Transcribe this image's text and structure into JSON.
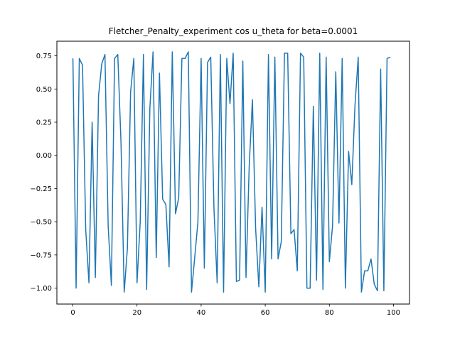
{
  "chart_data": {
    "type": "line",
    "title": "Fletcher_Penalty_experiment cos u_theta for beta=0.0001",
    "xlabel": "",
    "ylabel": "",
    "xlim": [
      -5,
      105
    ],
    "ylim": [
      -1.12,
      0.86
    ],
    "xticks": [
      0,
      20,
      40,
      60,
      80,
      100
    ],
    "xtick_labels": [
      "0",
      "20",
      "40",
      "60",
      "80",
      "100"
    ],
    "yticks": [
      -1.0,
      -0.75,
      -0.5,
      -0.25,
      0.0,
      0.25,
      0.5,
      0.75
    ],
    "ytick_labels": [
      "−1.00",
      "−0.75",
      "−0.50",
      "−0.25",
      "0.00",
      "0.25",
      "0.50",
      "0.75"
    ],
    "grid": false,
    "series": [
      {
        "color": "#1f77b4",
        "x": [
          0,
          1,
          2,
          3,
          4,
          5,
          6,
          7,
          8,
          9,
          10,
          11,
          12,
          13,
          14,
          15,
          16,
          17,
          18,
          19,
          20,
          21,
          22,
          23,
          24,
          25,
          26,
          27,
          28,
          29,
          30,
          31,
          32,
          33,
          34,
          35,
          36,
          37,
          38,
          39,
          40,
          41,
          42,
          43,
          44,
          45,
          46,
          47,
          48,
          49,
          50,
          51,
          52,
          53,
          54,
          55,
          56,
          57,
          58,
          59,
          60,
          61,
          62,
          63,
          64,
          65,
          66,
          67,
          68,
          69,
          70,
          71,
          72,
          73,
          74,
          75,
          76,
          77,
          78,
          79,
          80,
          81,
          82,
          83,
          84,
          85,
          86,
          87,
          88,
          89,
          90,
          91,
          92,
          93,
          94,
          95,
          96,
          97,
          98,
          99
        ],
        "y": [
          0.73,
          -1.0,
          0.73,
          0.68,
          -0.56,
          -0.96,
          0.25,
          -0.92,
          0.45,
          0.69,
          0.76,
          -0.53,
          -0.98,
          0.73,
          0.76,
          0.1,
          -1.03,
          -0.7,
          0.48,
          0.73,
          -0.96,
          -0.5,
          0.76,
          -1.01,
          0.35,
          0.78,
          -0.77,
          0.62,
          -0.33,
          -0.37,
          -0.84,
          0.78,
          -0.44,
          -0.32,
          0.73,
          0.73,
          0.78,
          -1.03,
          -0.77,
          -0.5,
          0.73,
          -0.85,
          0.7,
          0.74,
          -0.4,
          -0.96,
          0.76,
          -1.03,
          0.73,
          0.39,
          0.77,
          -0.95,
          -0.94,
          0.71,
          -0.92,
          -0.08,
          0.42,
          -0.55,
          -0.99,
          -0.39,
          -1.03,
          0.76,
          -0.78,
          0.74,
          -0.78,
          -0.65,
          0.77,
          0.77,
          -0.59,
          -0.56,
          -0.87,
          0.77,
          0.74,
          -1.0,
          -1.0,
          0.37,
          -0.94,
          0.77,
          -1.01,
          0.74,
          -0.8,
          -0.53,
          0.63,
          -0.51,
          0.73,
          -1.0,
          0.03,
          -0.22,
          0.38,
          0.74,
          -1.03,
          -0.87,
          -0.87,
          -0.78,
          -0.97,
          -1.02,
          0.65,
          -1.02,
          0.73,
          0.74
        ]
      }
    ]
  }
}
